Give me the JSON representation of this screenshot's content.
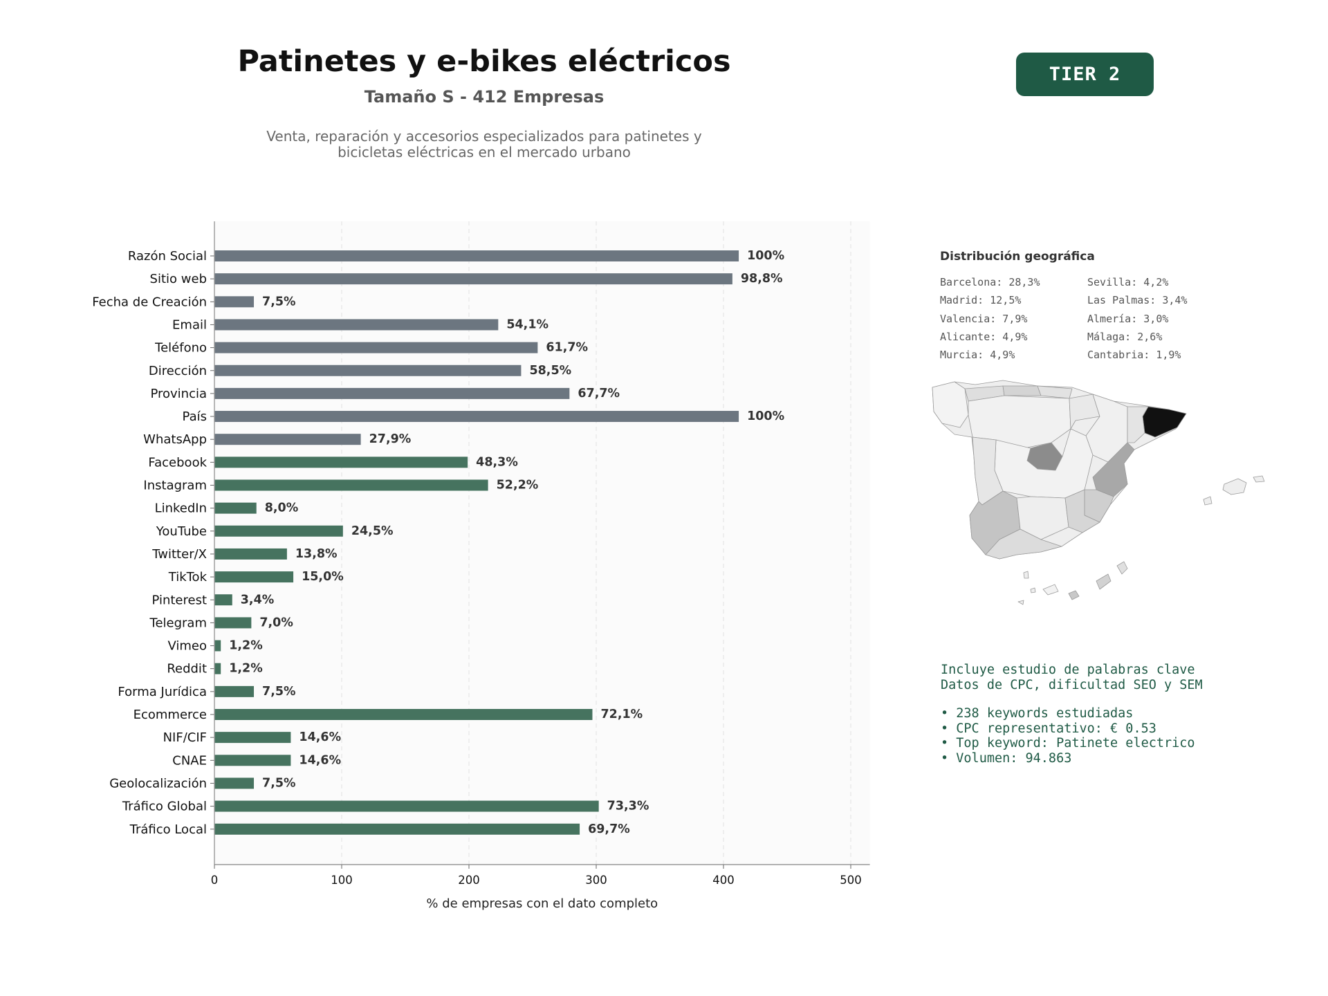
{
  "header": {
    "title": "Patinetes y e-bikes eléctricos",
    "subtitle": "Tamaño S - 412 Empresas",
    "description_line1": "Venta, reparación y accesorios especializados para patinetes y",
    "description_line2": "bicicletas eléctricas en el mercado urbano"
  },
  "badge": {
    "label": "TIER 2"
  },
  "colors": {
    "gray_bar": "#6c7680",
    "green_bar": "#46735f",
    "badge_bg": "#1f5a45",
    "keyword_text": "#1f5a45"
  },
  "chart_data": {
    "type": "bar",
    "orientation": "horizontal",
    "categories": [
      "Razón Social",
      "Sitio web",
      "Fecha de Creación",
      "Email",
      "Teléfono",
      "Dirección",
      "Provincia",
      "País",
      "WhatsApp",
      "Facebook",
      "Instagram",
      "LinkedIn",
      "YouTube",
      "Twitter/X",
      "TikTok",
      "Pinterest",
      "Telegram",
      "Vimeo",
      "Reddit",
      "Forma Jurídica",
      "Ecommerce",
      "NIF/CIF",
      "CNAE",
      "Geolocalización",
      "Tráfico Global",
      "Tráfico Local"
    ],
    "values": [
      412,
      407,
      31,
      223,
      254,
      241,
      279,
      412,
      115,
      199,
      215,
      33,
      101,
      57,
      62,
      14,
      29,
      5,
      5,
      31,
      297,
      60,
      60,
      31,
      302,
      287
    ],
    "labels": [
      "100%",
      "98,8%",
      "7,5%",
      "54,1%",
      "61,7%",
      "58,5%",
      "67,7%",
      "100%",
      "27,9%",
      "48,3%",
      "52,2%",
      "8,0%",
      "24,5%",
      "13,8%",
      "15,0%",
      "3,4%",
      "7,0%",
      "1,2%",
      "1,2%",
      "7,5%",
      "72,1%",
      "14,6%",
      "14,6%",
      "7,5%",
      "73,3%",
      "69,7%"
    ],
    "bar_group": [
      "gray",
      "gray",
      "gray",
      "gray",
      "gray",
      "gray",
      "gray",
      "gray",
      "gray",
      "green",
      "green",
      "green",
      "green",
      "green",
      "green",
      "green",
      "green",
      "green",
      "green",
      "green",
      "green",
      "green",
      "green",
      "green",
      "green",
      "green"
    ],
    "xlabel": "% de empresas con el dato completo",
    "ylabel": "",
    "xlim": [
      0,
      515
    ],
    "xticks": [
      0,
      100,
      200,
      300,
      400,
      500
    ],
    "grid": "vertical dashed"
  },
  "geo": {
    "title": "Distribución geográfica",
    "left_column": [
      "Barcelona: 28,3%",
      "Madrid: 12,5%",
      "Valencia: 7,9%",
      "Alicante: 4,9%",
      "Murcia: 4,9%"
    ],
    "right_column": [
      "Sevilla: 4,2%",
      "Las Palmas: 3,4%",
      "Almería: 3,0%",
      "Málaga: 2,6%",
      "Cantabria: 1,9%"
    ]
  },
  "keywords": {
    "line1": "Incluye estudio de palabras clave",
    "line2": "Datos de CPC, dificultad SEO y SEM",
    "bullets": [
      "• 238 keywords estudiadas",
      "• CPC representativo: € 0.53",
      "• Top keyword: Patinete electrico",
      "• Volumen: 94.863"
    ]
  }
}
